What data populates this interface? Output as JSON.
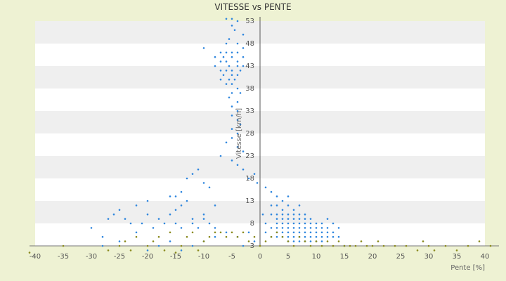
{
  "chart_data": {
    "type": "scatter",
    "title": "VITESSE vs PENTE",
    "xlabel": "Pente [%]",
    "ylabel": "Vitesse [km/h]",
    "xlim": [
      -40,
      40
    ],
    "ylim": [
      3,
      53
    ],
    "x_ticks": [
      "-40",
      "-35",
      "-30",
      "-25",
      "-20",
      "-15",
      "-10",
      "-5",
      "0",
      "5",
      "10",
      "15",
      "20",
      "25",
      "30",
      "35",
      "40"
    ],
    "y_ticks": [
      "3",
      "8",
      "13",
      "18",
      "23",
      "28",
      "33",
      "38",
      "43",
      "48",
      "53"
    ],
    "grid": "horizontal alternating bands",
    "legend": "none",
    "colors": {
      "series_1": "#2e86de",
      "series_2": "#8a8a1e",
      "plot_band": "#efefef",
      "background": "#eef2d3"
    },
    "series": [
      {
        "color": "#2e86de",
        "points": [
          [
            -6,
            53.5
          ],
          [
            -5,
            53.5
          ],
          [
            -4,
            53
          ],
          [
            -5,
            52
          ],
          [
            -4.5,
            51
          ],
          [
            -3,
            50
          ],
          [
            -5.5,
            49
          ],
          [
            -6,
            48
          ],
          [
            -4,
            48
          ],
          [
            -3,
            47
          ],
          [
            -10,
            47
          ],
          [
            -7,
            46
          ],
          [
            -6,
            46
          ],
          [
            -5,
            46
          ],
          [
            -4,
            46
          ],
          [
            -8,
            45
          ],
          [
            -6.5,
            45
          ],
          [
            -5,
            45
          ],
          [
            -3,
            45
          ],
          [
            -7,
            44
          ],
          [
            -6,
            44
          ],
          [
            -4,
            44
          ],
          [
            -8,
            43
          ],
          [
            -5.5,
            43
          ],
          [
            -4,
            43
          ],
          [
            -3,
            43
          ],
          [
            -7,
            42
          ],
          [
            -6,
            42
          ],
          [
            -5,
            42
          ],
          [
            -3.5,
            42
          ],
          [
            -6.5,
            41
          ],
          [
            -5,
            41
          ],
          [
            -4,
            41
          ],
          [
            -7,
            40
          ],
          [
            -5.5,
            40
          ],
          [
            -4.5,
            40
          ],
          [
            -6,
            39
          ],
          [
            -5,
            39
          ],
          [
            -4,
            38
          ],
          [
            -5,
            37
          ],
          [
            -3.5,
            37
          ],
          [
            -5.5,
            36
          ],
          [
            -4,
            35
          ],
          [
            -5,
            34
          ],
          [
            -4,
            33
          ],
          [
            -5,
            32
          ],
          [
            -4,
            31
          ],
          [
            -3.5,
            30
          ],
          [
            -5,
            29
          ],
          [
            -4,
            28
          ],
          [
            -5,
            27
          ],
          [
            -6,
            26
          ],
          [
            -4,
            25
          ],
          [
            -3,
            24
          ],
          [
            -7,
            23
          ],
          [
            -5,
            22
          ],
          [
            -4,
            21
          ],
          [
            -3,
            20
          ],
          [
            -1,
            19
          ],
          [
            -2,
            18
          ],
          [
            -0.5,
            17
          ],
          [
            -11,
            20
          ],
          [
            -12,
            19
          ],
          [
            -10,
            17
          ],
          [
            -13,
            18
          ],
          [
            -9,
            16
          ],
          [
            -14,
            15
          ],
          [
            -15,
            14
          ],
          [
            -16,
            14
          ],
          [
            -13,
            13
          ],
          [
            -14,
            12
          ],
          [
            -15,
            11
          ],
          [
            -16,
            10
          ],
          [
            -8,
            12
          ],
          [
            -10,
            10
          ],
          [
            -12,
            9
          ],
          [
            -20,
            13
          ],
          [
            -22,
            12
          ],
          [
            -25,
            11
          ],
          [
            -26,
            10
          ],
          [
            -24,
            9
          ],
          [
            -20,
            10
          ],
          [
            -21,
            8
          ],
          [
            -18,
            9
          ],
          [
            -17,
            8
          ],
          [
            -19,
            7
          ],
          [
            -15,
            8
          ],
          [
            -14,
            7
          ],
          [
            -12,
            8
          ],
          [
            -11,
            7
          ],
          [
            -10,
            9
          ],
          [
            -9,
            8
          ],
          [
            -8,
            7
          ],
          [
            -23,
            8
          ],
          [
            -27,
            9
          ],
          [
            -28,
            5
          ],
          [
            -30,
            7
          ],
          [
            -28,
            3
          ],
          [
            -25,
            4
          ],
          [
            -22,
            6
          ],
          [
            -20,
            2
          ],
          [
            -18,
            3
          ],
          [
            -16,
            4
          ],
          [
            -14,
            2
          ],
          [
            -12,
            3
          ],
          [
            -10,
            4
          ],
          [
            -8,
            5
          ],
          [
            -6,
            6
          ],
          [
            -4,
            5
          ],
          [
            -3,
            3
          ],
          [
            -2,
            6
          ],
          [
            -1,
            4
          ],
          [
            1,
            16
          ],
          [
            2,
            15
          ],
          [
            3,
            14
          ],
          [
            4,
            13
          ],
          [
            5,
            14
          ],
          [
            2,
            12
          ],
          [
            3,
            12
          ],
          [
            4,
            11
          ],
          [
            5,
            12
          ],
          [
            6,
            11
          ],
          [
            7,
            12
          ],
          [
            2,
            10
          ],
          [
            3,
            10
          ],
          [
            4,
            10
          ],
          [
            5,
            10
          ],
          [
            6,
            10
          ],
          [
            7,
            10
          ],
          [
            8,
            10
          ],
          [
            3,
            9
          ],
          [
            4,
            9
          ],
          [
            5,
            9
          ],
          [
            6,
            9
          ],
          [
            7,
            9
          ],
          [
            8,
            9
          ],
          [
            9,
            9
          ],
          [
            3,
            8
          ],
          [
            4,
            8
          ],
          [
            5,
            8
          ],
          [
            6,
            8
          ],
          [
            7,
            8
          ],
          [
            8,
            8
          ],
          [
            9,
            8
          ],
          [
            10,
            8
          ],
          [
            11,
            8
          ],
          [
            3,
            7
          ],
          [
            4,
            7
          ],
          [
            5,
            7
          ],
          [
            6,
            7
          ],
          [
            7,
            7
          ],
          [
            8,
            7
          ],
          [
            9,
            7
          ],
          [
            10,
            7
          ],
          [
            11,
            7
          ],
          [
            12,
            7
          ],
          [
            3,
            6
          ],
          [
            4,
            6
          ],
          [
            5,
            6
          ],
          [
            6,
            6
          ],
          [
            7,
            6
          ],
          [
            8,
            6
          ],
          [
            9,
            6
          ],
          [
            10,
            6
          ],
          [
            11,
            6
          ],
          [
            12,
            6
          ],
          [
            13,
            6
          ],
          [
            4,
            5
          ],
          [
            5,
            5
          ],
          [
            6,
            5
          ],
          [
            7,
            5
          ],
          [
            8,
            5
          ],
          [
            9,
            5
          ],
          [
            10,
            5
          ],
          [
            11,
            5
          ],
          [
            12,
            5
          ],
          [
            13,
            5
          ],
          [
            14,
            5
          ],
          [
            5,
            4
          ],
          [
            6,
            4
          ],
          [
            7,
            4
          ],
          [
            8,
            4
          ],
          [
            9,
            4
          ],
          [
            10,
            4
          ],
          [
            11,
            4
          ],
          [
            15,
            3
          ],
          [
            13,
            8
          ],
          [
            14,
            7
          ],
          [
            12,
            9
          ],
          [
            1,
            6
          ],
          [
            1,
            8
          ],
          [
            0.5,
            10
          ],
          [
            2,
            7
          ],
          [
            2,
            5
          ],
          [
            3,
            5
          ]
        ]
      },
      {
        "color": "#8a8a1e",
        "points": [
          [
            -41,
            1.5
          ],
          [
            -35,
            3
          ],
          [
            -27,
            2
          ],
          [
            -25,
            3
          ],
          [
            -24,
            4
          ],
          [
            -23,
            2
          ],
          [
            -22,
            5
          ],
          [
            -20,
            3
          ],
          [
            -19,
            4
          ],
          [
            -18,
            5
          ],
          [
            -17,
            2
          ],
          [
            -16,
            6
          ],
          [
            -15,
            1.5
          ],
          [
            -14,
            3
          ],
          [
            -13,
            5
          ],
          [
            -12,
            6
          ],
          [
            -11,
            2
          ],
          [
            -10,
            4
          ],
          [
            -9,
            5
          ],
          [
            -8,
            6
          ],
          [
            -7,
            6
          ],
          [
            -6,
            5
          ],
          [
            -5,
            6
          ],
          [
            -4,
            5
          ],
          [
            -3,
            6
          ],
          [
            -2,
            4
          ],
          [
            -1,
            5
          ],
          [
            0,
            3
          ],
          [
            1,
            4
          ],
          [
            2,
            5
          ],
          [
            3,
            6
          ],
          [
            4,
            5
          ],
          [
            5,
            4
          ],
          [
            6,
            3
          ],
          [
            7,
            5
          ],
          [
            8,
            4
          ],
          [
            9,
            3
          ],
          [
            10,
            4
          ],
          [
            11,
            3
          ],
          [
            12,
            4
          ],
          [
            13,
            3
          ],
          [
            14,
            4
          ],
          [
            15,
            3
          ],
          [
            16,
            3
          ],
          [
            17,
            3
          ],
          [
            18,
            4
          ],
          [
            19,
            3
          ],
          [
            20,
            3
          ],
          [
            21,
            4
          ],
          [
            22,
            3
          ],
          [
            24,
            3
          ],
          [
            26,
            3
          ],
          [
            28,
            2
          ],
          [
            29,
            4
          ],
          [
            30,
            3
          ],
          [
            31,
            2
          ],
          [
            33,
            3
          ],
          [
            35,
            2
          ],
          [
            37,
            3
          ],
          [
            39,
            4
          ],
          [
            41,
            3
          ]
        ]
      }
    ]
  }
}
